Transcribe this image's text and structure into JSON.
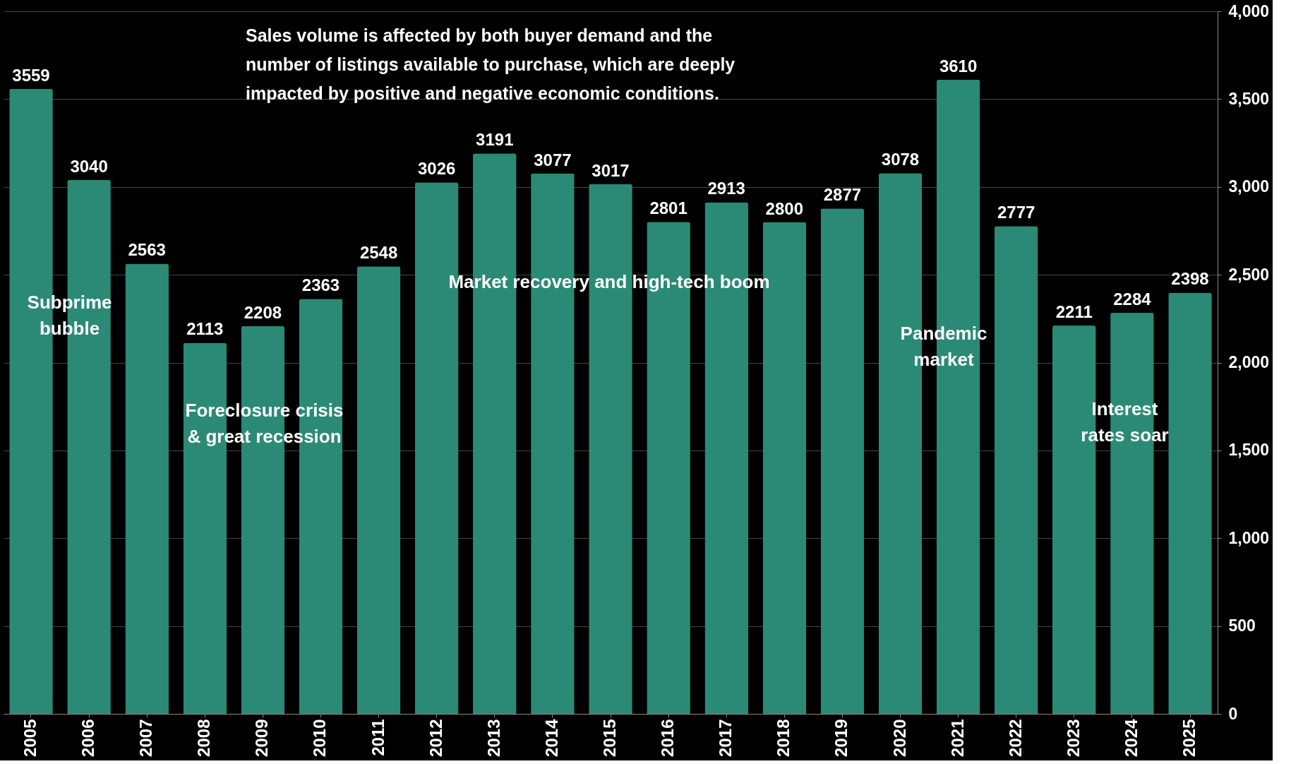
{
  "chart_data": {
    "type": "bar",
    "categories": [
      "2005",
      "2006",
      "2007",
      "2008",
      "2009",
      "2010",
      "2011",
      "2012",
      "2013",
      "2014",
      "2015",
      "2016",
      "2017",
      "2018",
      "2019",
      "2020",
      "2021",
      "2022",
      "2023",
      "2024",
      "2025"
    ],
    "values": [
      3559,
      3040,
      2563,
      2113,
      2208,
      2363,
      2548,
      3026,
      3191,
      3077,
      3017,
      2801,
      2913,
      2800,
      2877,
      3078,
      3610,
      2777,
      2211,
      2284,
      2398
    ],
    "color": "#2a8a76",
    "ylim": [
      0,
      4000
    ],
    "yticks": [
      {
        "value": 0,
        "label": "0"
      },
      {
        "value": 500,
        "label": "500"
      },
      {
        "value": 1000,
        "label": "1,000"
      },
      {
        "value": 1500,
        "label": "1,500"
      },
      {
        "value": 2000,
        "label": "2,000"
      },
      {
        "value": 2500,
        "label": "2,500"
      },
      {
        "value": 3000,
        "label": "3,000"
      },
      {
        "value": 3500,
        "label": "3,500"
      },
      {
        "value": 4000,
        "label": "4,000"
      }
    ],
    "grid": "y",
    "data_labels": true,
    "annotations": [
      "Sales volume is affected by both buyer demand and the\nnumber of listings available to purchase, which are deeply\nimpacted by positive and negative economic conditions.",
      "Subprime\nbubble",
      "Foreclosure crisis\n& great recession",
      "Market recovery and high-tech boom",
      "Pandemic\nmarket",
      "Interest\nrates soar"
    ]
  }
}
